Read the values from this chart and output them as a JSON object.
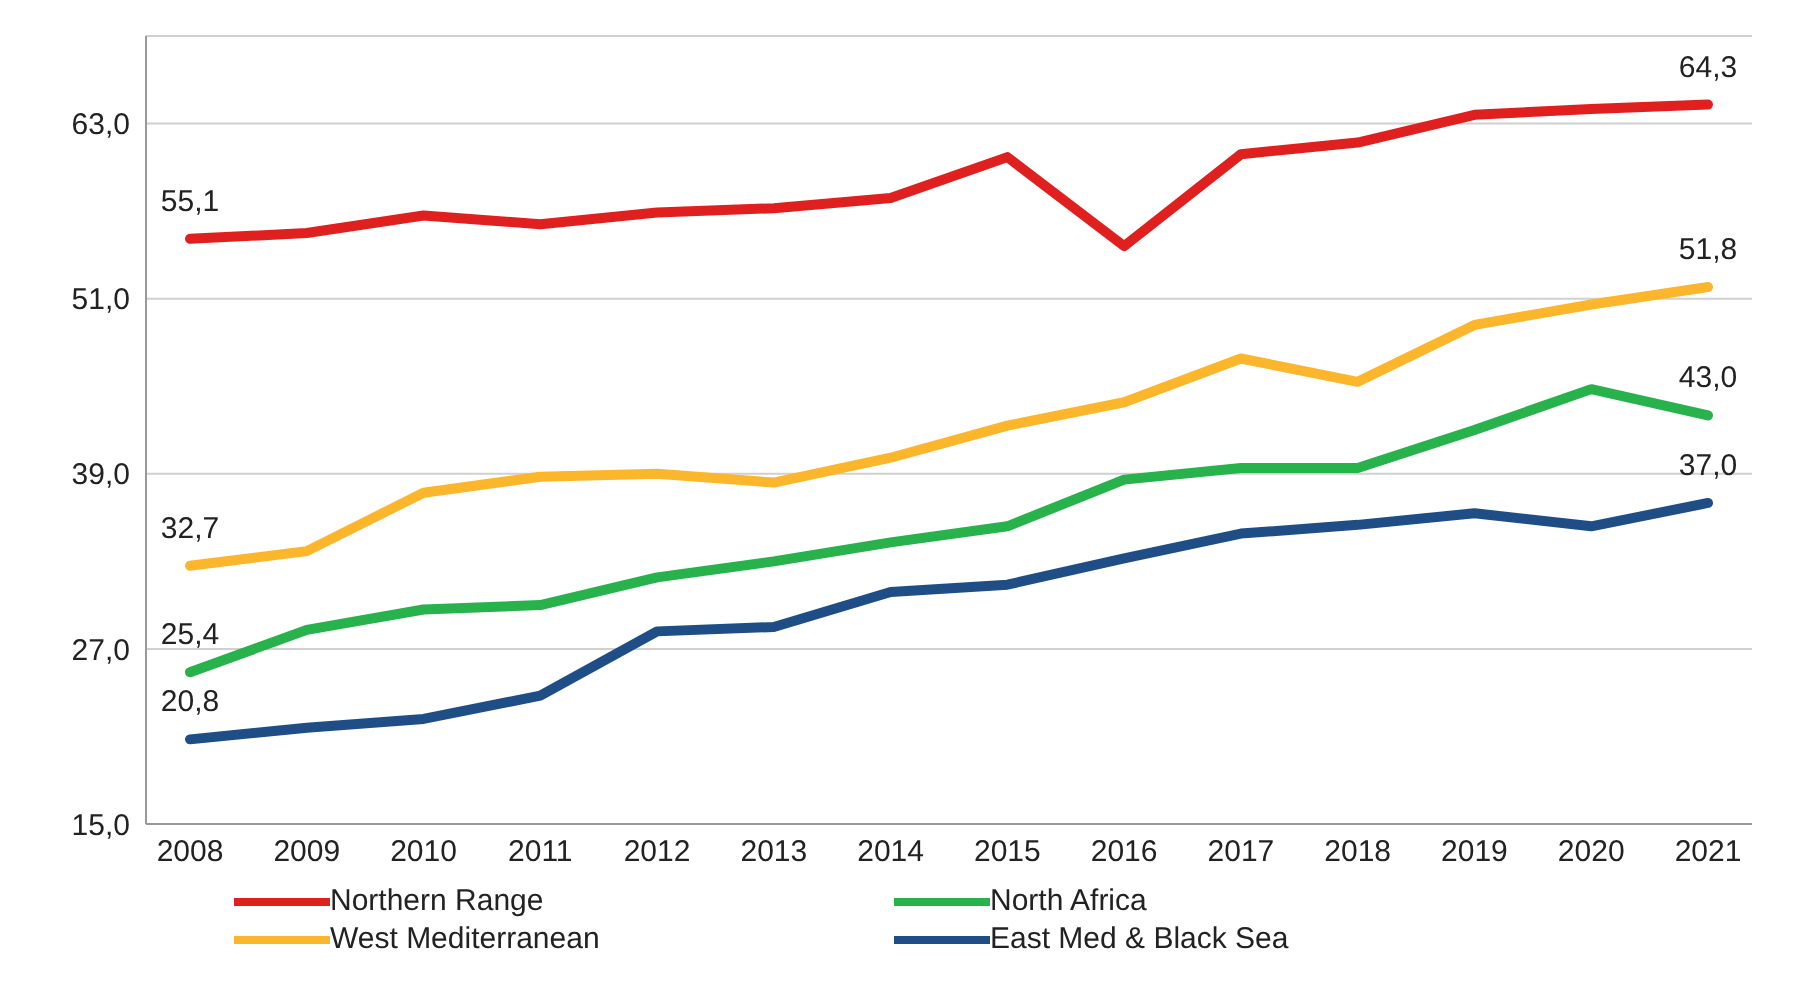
{
  "chart_data": {
    "type": "line",
    "categories": [
      "2008",
      "2009",
      "2010",
      "2011",
      "2012",
      "2013",
      "2014",
      "2015",
      "2016",
      "2017",
      "2018",
      "2019",
      "2020",
      "2021"
    ],
    "series": [
      {
        "name": "Northern Range",
        "color": "#e0201f",
        "values": [
          55.1,
          55.5,
          56.7,
          56.1,
          56.9,
          57.2,
          57.9,
          60.7,
          54.6,
          60.9,
          61.7,
          63.6,
          64.0,
          64.3
        ],
        "value_labels": [
          "55,1",
          null,
          null,
          null,
          null,
          null,
          null,
          null,
          null,
          null,
          null,
          null,
          null,
          "64,3"
        ]
      },
      {
        "name": "North Africa",
        "color": "#27b24b",
        "values": [
          25.4,
          28.3,
          29.7,
          30.0,
          31.9,
          33.0,
          34.3,
          35.4,
          38.6,
          39.4,
          39.4,
          42.0,
          44.8,
          43.0
        ],
        "value_labels": [
          "25,4",
          null,
          null,
          null,
          null,
          null,
          null,
          null,
          null,
          null,
          null,
          null,
          null,
          "43,0"
        ]
      },
      {
        "name": "West Mediterranean",
        "color": "#fbb62c",
        "values": [
          32.7,
          33.7,
          37.7,
          38.8,
          39.0,
          38.4,
          40.1,
          42.3,
          43.9,
          46.9,
          45.3,
          49.2,
          50.6,
          51.8
        ],
        "value_labels": [
          "32,7",
          null,
          null,
          null,
          null,
          null,
          null,
          null,
          null,
          null,
          null,
          null,
          null,
          "51,8"
        ]
      },
      {
        "name": "East Med & Black Sea",
        "color": "#1f4e86",
        "values": [
          20.8,
          21.6,
          22.2,
          23.8,
          28.2,
          28.5,
          30.9,
          31.4,
          33.2,
          34.9,
          35.5,
          36.3,
          35.4,
          37.0
        ],
        "value_labels": [
          "20,8",
          null,
          null,
          null,
          null,
          null,
          null,
          null,
          null,
          null,
          null,
          null,
          null,
          "37,0"
        ]
      }
    ],
    "ylim": [
      15,
      69
    ],
    "yticks": [
      {
        "value": 15,
        "label": "15,0"
      },
      {
        "value": 27,
        "label": "27,0"
      },
      {
        "value": 39,
        "label": "39,0"
      },
      {
        "value": 51,
        "label": "51,0"
      },
      {
        "value": 63,
        "label": "63,0"
      }
    ],
    "grid": "y",
    "legend": "bottom",
    "marker": "none",
    "line_style": "solid"
  }
}
